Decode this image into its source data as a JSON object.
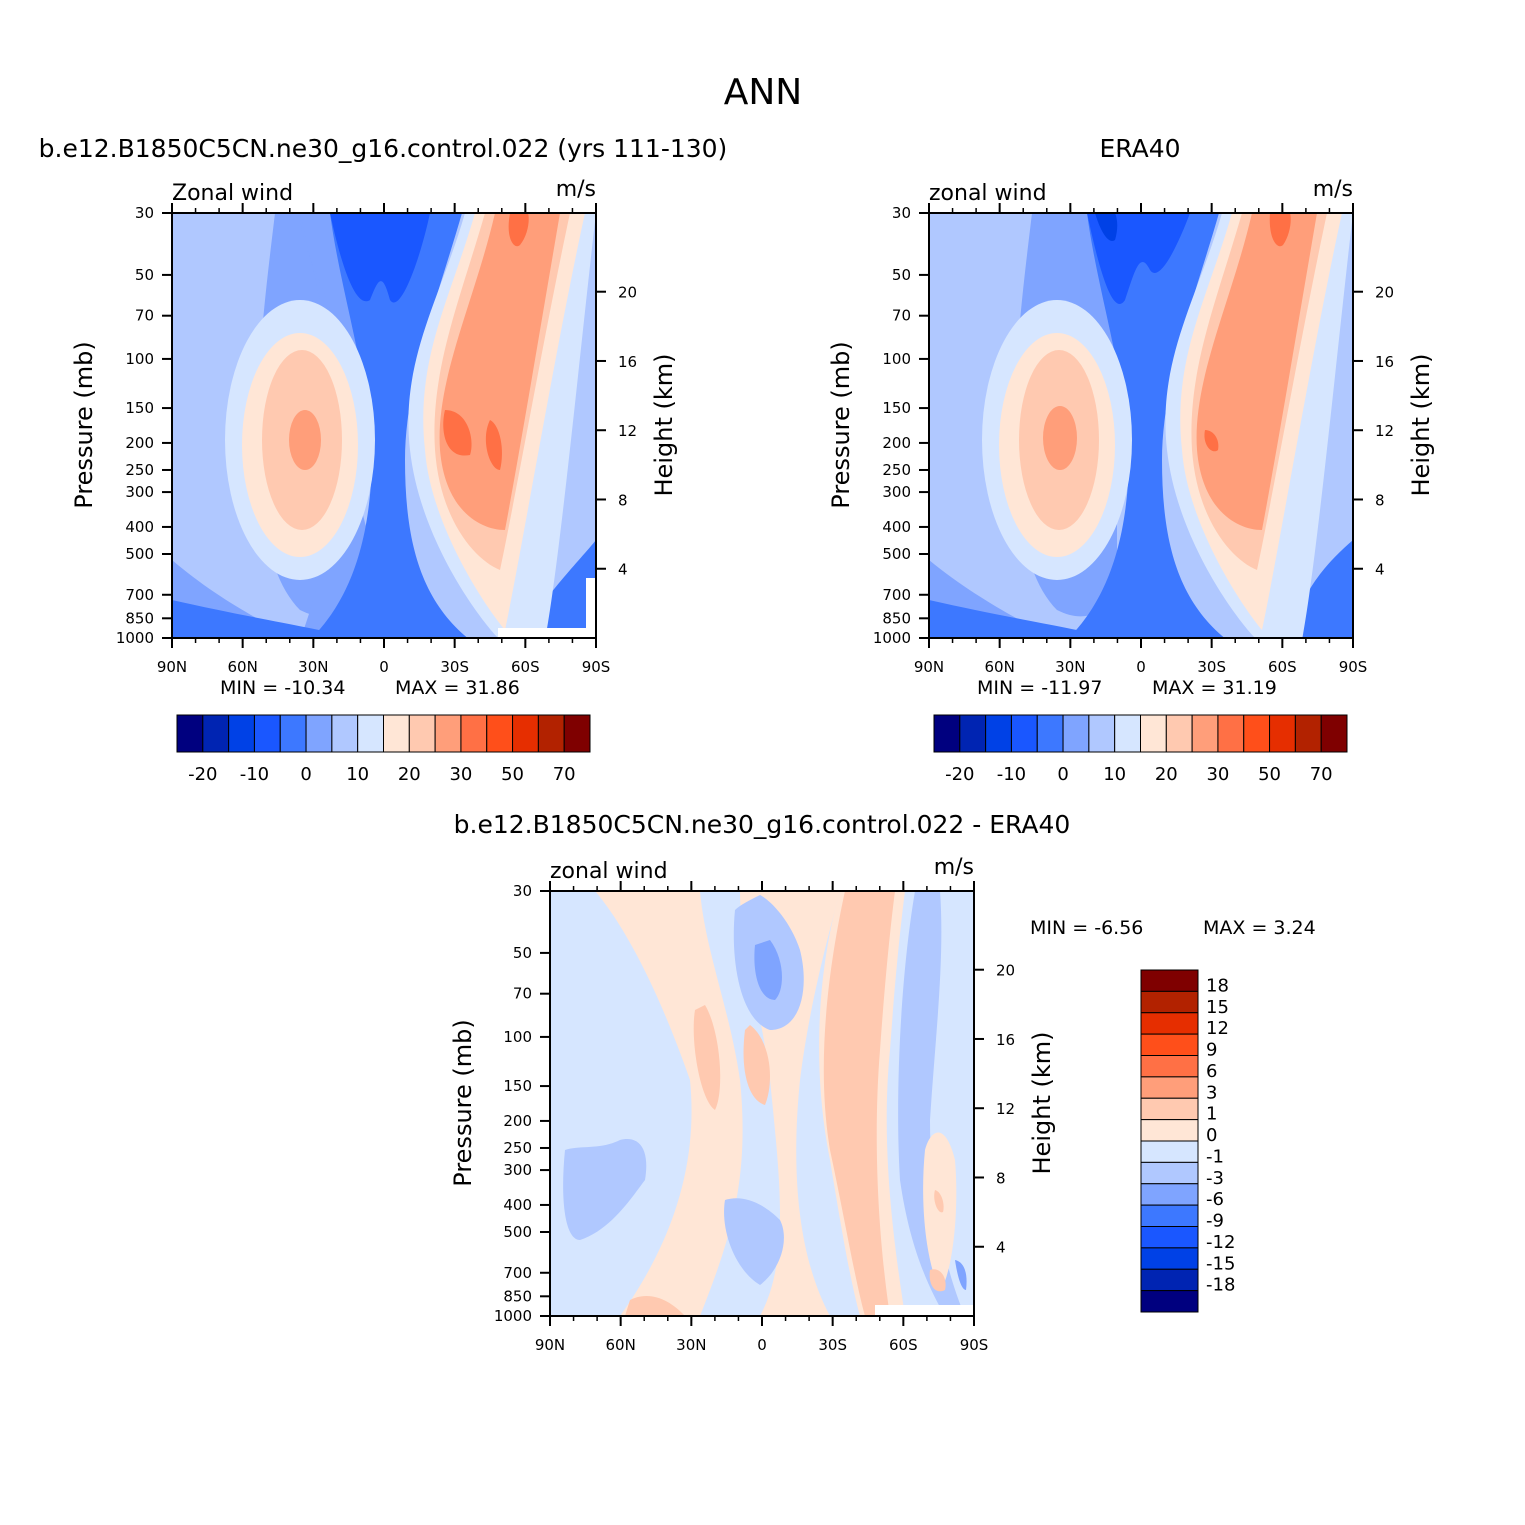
{
  "page_title": "ANN",
  "colors": {
    "fill": [
      "#00007f",
      "#0024b2",
      "#0041e6",
      "#1a57ff",
      "#3d78ff",
      "#7fa4ff",
      "#b0c8ff",
      "#d6e6ff",
      "#ffe6d6",
      "#ffc9b0",
      "#ff9e7a",
      "#ff7045",
      "#ff4f1a",
      "#e62e00",
      "#b22200",
      "#7f0000"
    ]
  },
  "chart_data": [
    {
      "type": "heatmap",
      "title": "b.e12.B1850C5CN.ne30_g16.control.022 (yrs 111-130)",
      "left_label": "Zonal wind",
      "right_label": "m/s",
      "xlabel": "",
      "ylabel": "Pressure (mb)",
      "ylabel_right": "Height (km)",
      "x_ticks": [
        "90N",
        "60N",
        "30N",
        "0",
        "30S",
        "60S",
        "90S"
      ],
      "y_ticks": [
        "30",
        "50",
        "70",
        "100",
        "150",
        "200",
        "250",
        "300",
        "400",
        "500",
        "700",
        "850",
        "1000"
      ],
      "height_ticks": [
        "4",
        "8",
        "12",
        "16",
        "20"
      ],
      "min_label": "MIN = -10.34",
      "max_label": "MAX = 31.86",
      "colorbar_ticks": [
        "-20",
        "-10",
        "0",
        "10",
        "20",
        "30",
        "50",
        "70"
      ],
      "peaks": [
        {
          "lat": -55,
          "p": 200,
          "value": 31.86
        },
        {
          "lat": -30,
          "p": 200,
          "value": 31
        },
        {
          "lat": 30,
          "p": 200,
          "value": 24
        },
        {
          "lat": 0,
          "p": 30,
          "value": -10.34
        }
      ]
    },
    {
      "type": "heatmap",
      "title": "ERA40",
      "left_label": "zonal wind",
      "right_label": "m/s",
      "xlabel": "",
      "ylabel": "Pressure (mb)",
      "ylabel_right": "Height (km)",
      "x_ticks": [
        "90N",
        "60N",
        "30N",
        "0",
        "30S",
        "60S",
        "90S"
      ],
      "y_ticks": [
        "30",
        "50",
        "70",
        "100",
        "150",
        "200",
        "250",
        "300",
        "400",
        "500",
        "700",
        "850",
        "1000"
      ],
      "height_ticks": [
        "4",
        "8",
        "12",
        "16",
        "20"
      ],
      "min_label": "MIN = -11.97",
      "max_label": "MAX = 31.19",
      "colorbar_ticks": [
        "-20",
        "-10",
        "0",
        "10",
        "20",
        "30",
        "50",
        "70"
      ],
      "peaks": [
        {
          "lat": -30,
          "p": 200,
          "value": 31.19
        },
        {
          "lat": 30,
          "p": 200,
          "value": 25
        },
        {
          "lat": 0,
          "p": 30,
          "value": -11.97
        }
      ]
    },
    {
      "type": "heatmap",
      "title": "b.e12.B1850C5CN.ne30_g16.control.022 - ERA40",
      "left_label": "zonal wind",
      "right_label": "m/s",
      "xlabel": "",
      "ylabel": "Pressure (mb)",
      "ylabel_right": "Height (km)",
      "x_ticks": [
        "90N",
        "60N",
        "30N",
        "0",
        "30S",
        "60S",
        "90S"
      ],
      "y_ticks": [
        "30",
        "50",
        "70",
        "100",
        "150",
        "200",
        "250",
        "300",
        "400",
        "500",
        "700",
        "850",
        "1000"
      ],
      "height_ticks": [
        "4",
        "8",
        "12",
        "16",
        "20"
      ],
      "min_label": "MIN = -6.56",
      "max_label": "MAX = 3.24",
      "colorbar_ticks": [
        "18",
        "15",
        "12",
        "9",
        "6",
        "3",
        "1",
        "0",
        "-1",
        "-3",
        "-6",
        "-9",
        "-12",
        "-15",
        "-18"
      ],
      "peaks": [
        {
          "lat": 0,
          "p": 60,
          "value": -6.56
        },
        {
          "lat": -35,
          "p": 300,
          "value": 3.24
        }
      ]
    }
  ]
}
